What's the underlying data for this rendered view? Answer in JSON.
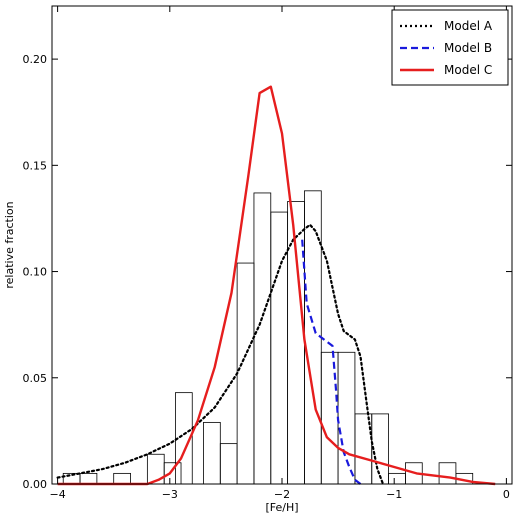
{
  "chart_data": {
    "type": "histogram+line",
    "xlabel": "[Fe/H]",
    "ylabel": "relative fraction",
    "xlim": [
      -4.05,
      0.05
    ],
    "ylim": [
      0,
      0.225
    ],
    "xticks": [
      -4,
      -3,
      -2,
      -1,
      0
    ],
    "xtick_labels": [
      "−4",
      "−3",
      "−2",
      "−1",
      "0"
    ],
    "yticks": [
      0.0,
      0.05,
      0.1,
      0.15,
      0.2
    ],
    "ytick_labels": [
      "0.00",
      "0.05",
      "0.10",
      "0.15",
      "0.20"
    ],
    "grid": false,
    "legend_position": "top-right",
    "histogram": {
      "bin_width": 0.15,
      "bars": [
        {
          "x0": -3.95,
          "value": 0.005
        },
        {
          "x0": -3.8,
          "value": 0.005
        },
        {
          "x0": -3.5,
          "value": 0.005
        },
        {
          "x0": -3.2,
          "value": 0.014
        },
        {
          "x0": -3.05,
          "value": 0.01
        },
        {
          "x0": -2.95,
          "value": 0.043
        },
        {
          "x0": -2.7,
          "value": 0.029
        },
        {
          "x0": -2.55,
          "value": 0.019
        },
        {
          "x0": -2.4,
          "value": 0.104
        },
        {
          "x0": -2.25,
          "value": 0.137
        },
        {
          "x0": -2.1,
          "value": 0.128
        },
        {
          "x0": -1.95,
          "value": 0.133
        },
        {
          "x0": -1.8,
          "value": 0.138
        },
        {
          "x0": -1.65,
          "value": 0.062
        },
        {
          "x0": -1.5,
          "value": 0.062
        },
        {
          "x0": -1.35,
          "value": 0.033
        },
        {
          "x0": -1.2,
          "value": 0.033
        },
        {
          "x0": -1.05,
          "value": 0.005
        },
        {
          "x0": -0.9,
          "value": 0.01
        },
        {
          "x0": -0.6,
          "value": 0.01
        },
        {
          "x0": -0.45,
          "value": 0.005
        }
      ]
    },
    "series": [
      {
        "name": "Model A",
        "color": "#000000",
        "style": "dotted",
        "x": [
          -4.0,
          -3.8,
          -3.6,
          -3.4,
          -3.2,
          -3.0,
          -2.8,
          -2.6,
          -2.4,
          -2.2,
          -2.0,
          -1.9,
          -1.8,
          -1.75,
          -1.7,
          -1.6,
          -1.5,
          -1.45,
          -1.35,
          -1.3,
          -1.25,
          -1.2,
          -1.15,
          -1.1
        ],
        "y": [
          0.003,
          0.005,
          0.007,
          0.01,
          0.014,
          0.019,
          0.026,
          0.036,
          0.052,
          0.075,
          0.105,
          0.115,
          0.12,
          0.122,
          0.119,
          0.105,
          0.08,
          0.072,
          0.068,
          0.06,
          0.04,
          0.02,
          0.007,
          0.0
        ]
      },
      {
        "name": "Model B",
        "color": "#1a1adc",
        "style": "dashed",
        "x": [
          -1.82,
          -1.78,
          -1.7,
          -1.6,
          -1.55,
          -1.52,
          -1.5,
          -1.45,
          -1.4,
          -1.35,
          -1.3
        ],
        "y": [
          0.115,
          0.085,
          0.071,
          0.067,
          0.065,
          0.045,
          0.03,
          0.015,
          0.008,
          0.002,
          0.0
        ]
      },
      {
        "name": "Model C",
        "color": "#e61e1e",
        "style": "solid",
        "x": [
          -4.0,
          -3.6,
          -3.2,
          -3.1,
          -3.0,
          -2.9,
          -2.75,
          -2.6,
          -2.45,
          -2.3,
          -2.2,
          -2.1,
          -2.0,
          -1.9,
          -1.8,
          -1.7,
          -1.6,
          -1.5,
          -1.4,
          -1.2,
          -1.0,
          -0.8,
          -0.5,
          -0.3,
          -0.1
        ],
        "y": [
          0.0,
          0.0,
          0.0,
          0.002,
          0.005,
          0.012,
          0.03,
          0.055,
          0.09,
          0.145,
          0.184,
          0.187,
          0.165,
          0.122,
          0.068,
          0.035,
          0.022,
          0.017,
          0.014,
          0.011,
          0.008,
          0.005,
          0.003,
          0.001,
          0.0
        ]
      }
    ]
  }
}
